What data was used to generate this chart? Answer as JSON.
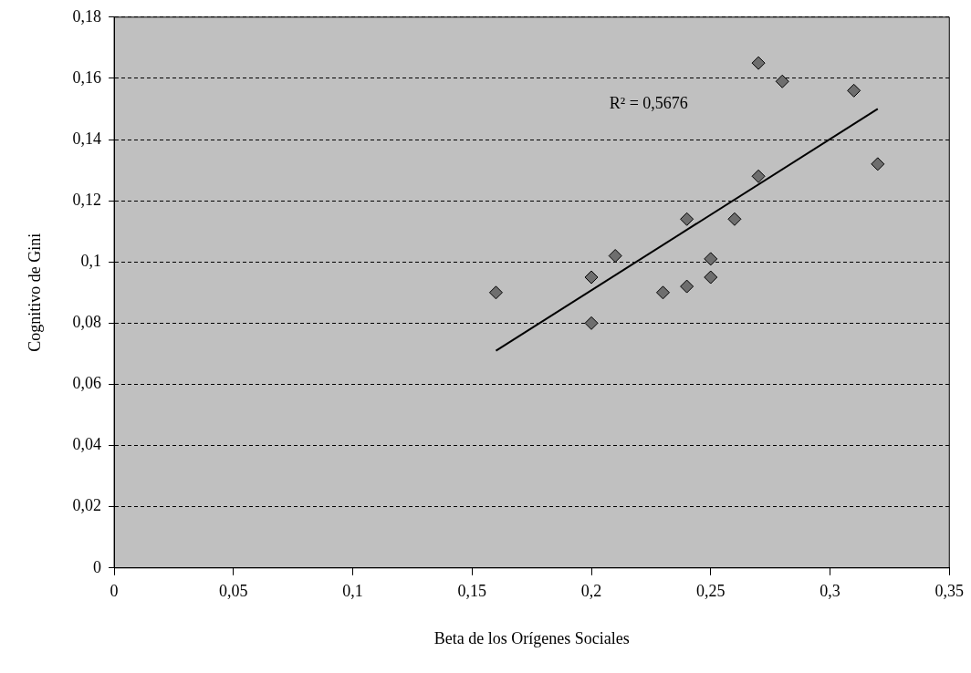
{
  "chart_data": {
    "type": "scatter",
    "xlabel": "Beta de los Orígenes Sociales",
    "ylabel": "Cognitivo de Gini",
    "x": [
      0.16,
      0.2,
      0.2,
      0.21,
      0.23,
      0.24,
      0.24,
      0.25,
      0.25,
      0.26,
      0.27,
      0.27,
      0.28,
      0.31,
      0.32
    ],
    "series": [
      {
        "color": "#6e6e6e",
        "marker": "diamond",
        "values": [
          0.09,
          0.095,
          0.08,
          0.102,
          0.09,
          0.092,
          0.114,
          0.101,
          0.095,
          0.114,
          0.128,
          0.165,
          0.159,
          0.156,
          0.132
        ]
      },
      {
        "type": "line",
        "color": "#000000",
        "x": [
          0.16,
          0.32
        ],
        "values": [
          0.071,
          0.15
        ]
      }
    ],
    "annotations": [
      "R² = 0,5676"
    ],
    "xlim": [
      0,
      0.35
    ],
    "xticks": [
      0,
      {
        "value": 0.05,
        "label": "0,05"
      },
      {
        "value": 0.1,
        "label": "0,1"
      },
      {
        "value": 0.15,
        "label": "0,15"
      },
      {
        "value": 0.2,
        "label": "0,2"
      },
      {
        "value": 0.25,
        "label": "0,25"
      },
      {
        "value": 0.3,
        "label": "0,3"
      },
      {
        "value": 0.35,
        "label": "0,35"
      }
    ],
    "ylim": [
      0,
      0.18
    ],
    "yticks": [
      0,
      {
        "value": 0.02,
        "label": "0,02"
      },
      {
        "value": 0.04,
        "label": "0,04"
      },
      {
        "value": 0.06,
        "label": "0,06"
      },
      {
        "value": 0.08,
        "label": "0,08"
      },
      {
        "value": 0.1,
        "label": "0,1"
      },
      {
        "value": 0.12,
        "label": "0,12"
      },
      {
        "value": 0.14,
        "label": "0,14"
      },
      {
        "value": 0.16,
        "label": "0,16"
      },
      {
        "value": 0.18,
        "label": "0,18"
      }
    ],
    "grid": "y",
    "legend": false
  }
}
